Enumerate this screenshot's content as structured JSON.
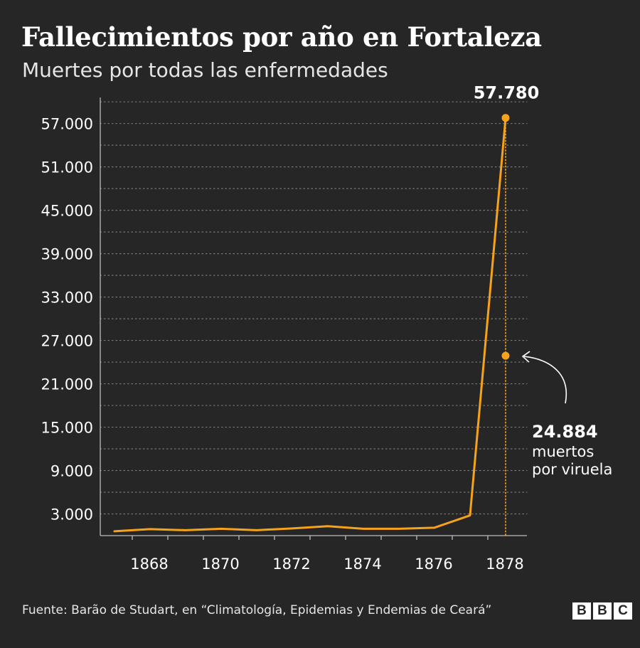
{
  "header": {
    "title": "Fallecimientos por año en Fortaleza",
    "subtitle": "Muertes por todas las enfermedades"
  },
  "footer": {
    "source": "Fuente: Barão de Studart, en “Climatología, Epidemias y Endemias de Ceará”",
    "logo_letters": [
      "B",
      "B",
      "C"
    ]
  },
  "colors": {
    "background": "#262626",
    "line": "#f7a21b",
    "text": "#ffffff",
    "grid": "#7a7a7a"
  },
  "chart_data": {
    "type": "line",
    "title": "Fallecimientos por año en Fortaleza",
    "subtitle": "Muertes por todas las enfermedades",
    "xlabel": "",
    "ylabel": "",
    "xlim": [
      1866.6,
      1878.6
    ],
    "ylim": [
      0,
      60000
    ],
    "x_ticks": [
      1868,
      1870,
      1872,
      1874,
      1876,
      1878
    ],
    "x_tick_labels": [
      "1868",
      "1870",
      "1872",
      "1874",
      "1876",
      "1878"
    ],
    "y_ticks": [
      3000,
      9000,
      15000,
      21000,
      27000,
      33000,
      39000,
      45000,
      51000,
      57000
    ],
    "y_tick_labels": [
      "3.000",
      "9.000",
      "15.000",
      "21.000",
      "27.000",
      "33.000",
      "39.000",
      "45.000",
      "51.000",
      "57.000"
    ],
    "grid": true,
    "series": [
      {
        "x": [
          1867,
          1868,
          1869,
          1870,
          1871,
          1872,
          1873,
          1874,
          1875,
          1876,
          1877,
          1878
        ],
        "y": [
          600,
          900,
          750,
          950,
          750,
          1000,
          1300,
          950,
          950,
          1100,
          2800,
          57780
        ]
      }
    ],
    "annotations": [
      {
        "x": 1878,
        "y": 57780,
        "label": "57.780"
      },
      {
        "x": 1878,
        "y": 24884,
        "label": "24.884",
        "text": [
          "muertos",
          "por viruela"
        ]
      }
    ]
  }
}
